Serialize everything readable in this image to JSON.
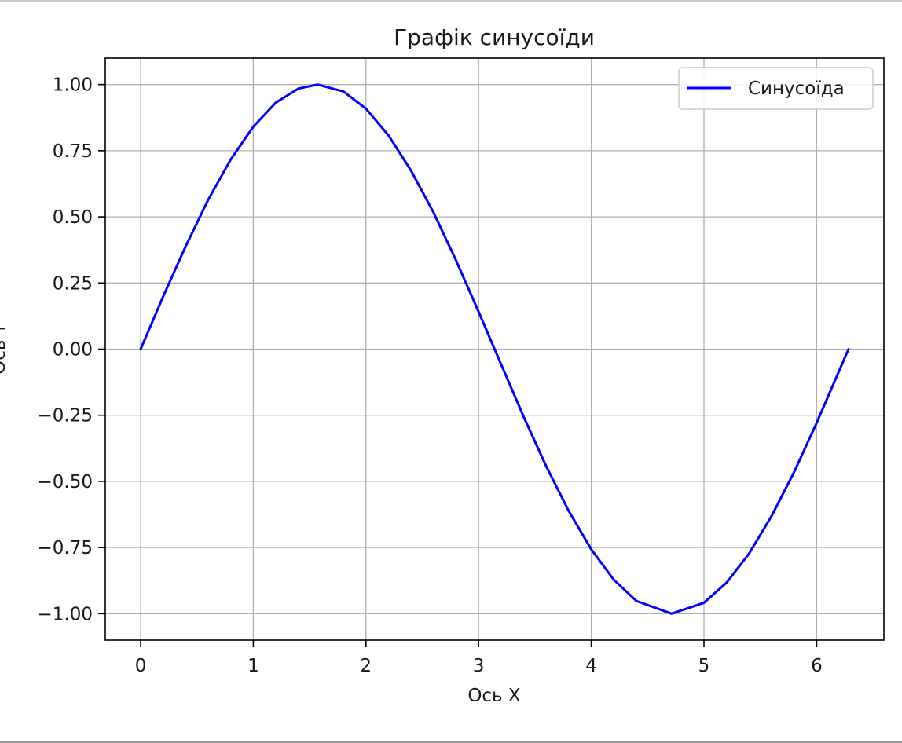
{
  "chart_data": {
    "type": "line",
    "title": "Графік синусоїди",
    "xlabel": "Ось X",
    "ylabel": "Ось Y",
    "xlim": [
      -0.314,
      6.597
    ],
    "ylim": [
      -1.1,
      1.1
    ],
    "grid": true,
    "legend": {
      "placement": "top-right",
      "entries": [
        "Синусоїда"
      ]
    },
    "x_ticks": [
      0,
      1,
      2,
      3,
      4,
      5,
      6
    ],
    "x_tick_labels": [
      "0",
      "1",
      "2",
      "3",
      "4",
      "5",
      "6"
    ],
    "y_ticks": [
      1.0,
      0.75,
      0.5,
      0.25,
      0.0,
      -0.25,
      -0.5,
      -0.75,
      -1.0
    ],
    "y_tick_labels": [
      "1.00",
      "0.75",
      "0.50",
      "0.25",
      "0.00",
      "−0.25",
      "−0.50",
      "−0.75",
      "−1.00"
    ],
    "series": [
      {
        "name": "Синусоїда",
        "color": "#0000ff",
        "x": [
          0,
          0.2,
          0.4,
          0.6,
          0.8,
          1.0,
          1.2,
          1.4,
          1.5708,
          1.8,
          2.0,
          2.2,
          2.4,
          2.6,
          2.8,
          3.0,
          3.1416,
          3.4,
          3.6,
          3.8,
          4.0,
          4.2,
          4.4,
          4.7124,
          5.0,
          5.2,
          5.4,
          5.6,
          5.8,
          6.0,
          6.2832
        ],
        "y": [
          0,
          0.199,
          0.389,
          0.565,
          0.717,
          0.841,
          0.932,
          0.985,
          1.0,
          0.974,
          0.909,
          0.808,
          0.675,
          0.516,
          0.335,
          0.141,
          0.0,
          -0.256,
          -0.443,
          -0.612,
          -0.757,
          -0.872,
          -0.952,
          -1.0,
          -0.959,
          -0.883,
          -0.773,
          -0.631,
          -0.465,
          -0.279,
          0.0
        ]
      }
    ]
  }
}
